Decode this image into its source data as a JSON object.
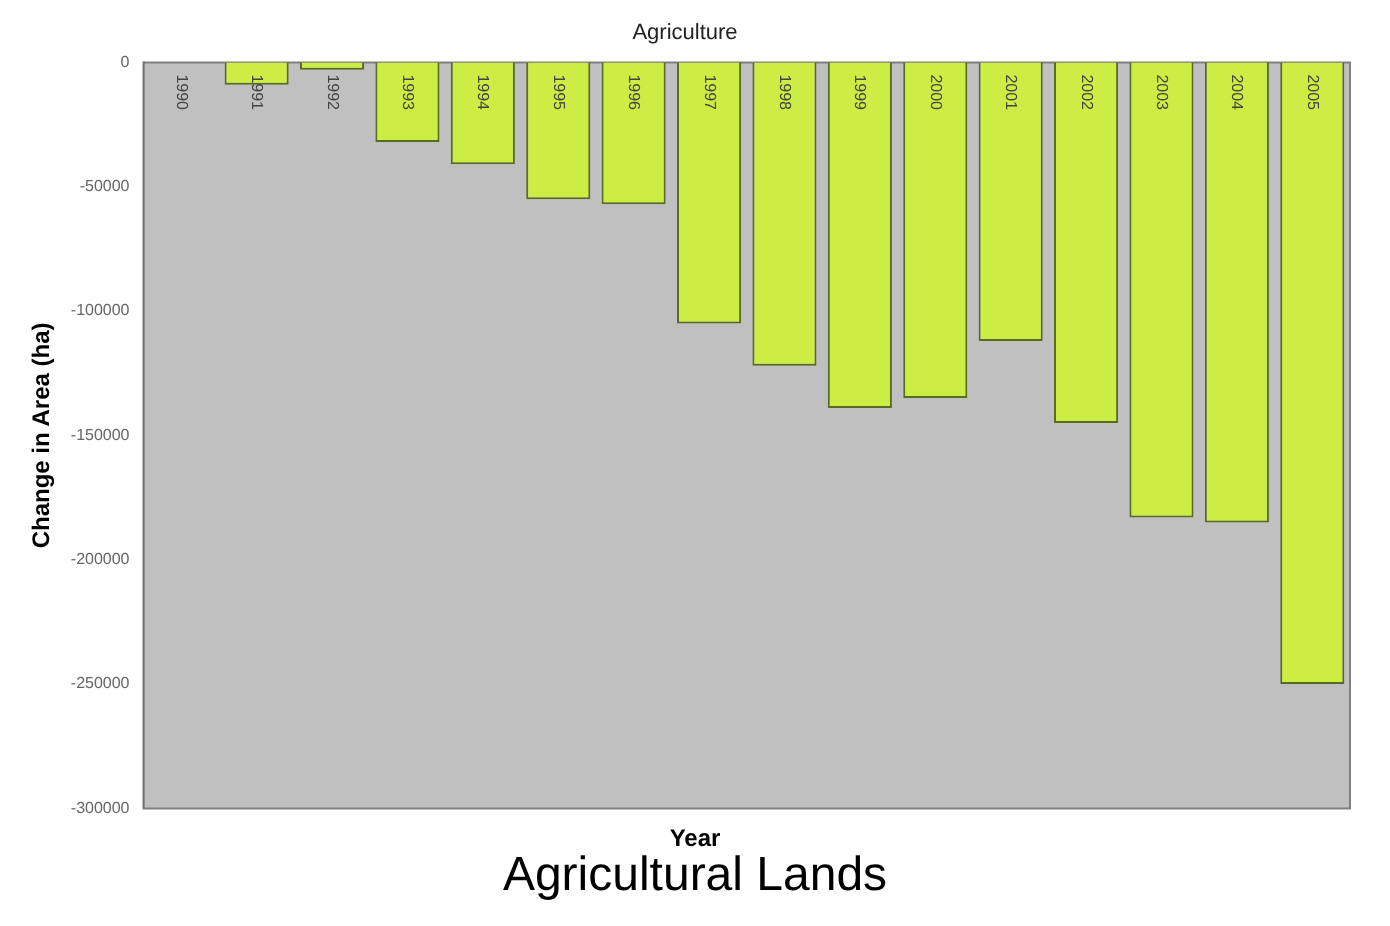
{
  "chart_data": {
    "type": "bar",
    "title": "Agriculture",
    "xlabel": "Year",
    "ylabel": "Change in Area (ha)",
    "categories": [
      "1990",
      "1991",
      "1992",
      "1993",
      "1994",
      "1995",
      "1996",
      "1997",
      "1998",
      "1999",
      "2000",
      "2001",
      "2002",
      "2003",
      "2004",
      "2005"
    ],
    "values": [
      0,
      -9000,
      -3000,
      -32000,
      -41000,
      -55000,
      -57000,
      -105000,
      -122000,
      -139000,
      -135000,
      -112000,
      -145000,
      -183000,
      -185000,
      -250000
    ],
    "color": "#ccee44",
    "ylim": [
      -300000,
      0
    ],
    "yticks": [
      0,
      -50000,
      -100000,
      -150000,
      -200000,
      -250000,
      -300000
    ],
    "grid": false,
    "legend": false,
    "annotations": [
      "Agricultural Lands"
    ]
  }
}
